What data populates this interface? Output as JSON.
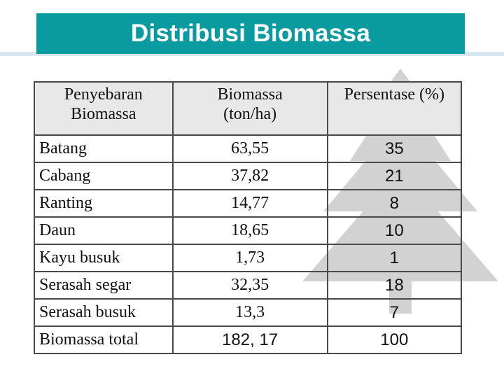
{
  "title": "Distribusi Biomassa",
  "table": {
    "headers": {
      "col1": [
        "Penyebaran",
        "Biomassa"
      ],
      "col2": [
        "Biomassa",
        "(ton/ha)"
      ],
      "col3": "Persentase (%)"
    },
    "rows": [
      {
        "name": "Batang",
        "biomass": "63,55",
        "percent": "35"
      },
      {
        "name": "Cabang",
        "biomass": "37,82",
        "percent": "21"
      },
      {
        "name": "Ranting",
        "biomass": "14,77",
        "percent": "8"
      },
      {
        "name": "Daun",
        "biomass": "18,65",
        "percent": "10"
      },
      {
        "name": "Kayu busuk",
        "biomass": "1,73",
        "percent": "1"
      },
      {
        "name": "Serasah segar",
        "biomass": "32,35",
        "percent": "18"
      },
      {
        "name": "Serasah busuk",
        "biomass": "13,3",
        "percent": "7"
      },
      {
        "name": "Biomassa total",
        "biomass": "182, 17",
        "percent": "100"
      }
    ]
  },
  "colors": {
    "title_bar": "#0a9ba0",
    "rule": "#d8e6ee",
    "header_bg": "#e8e8e8",
    "tree": "#cfcfcf"
  }
}
